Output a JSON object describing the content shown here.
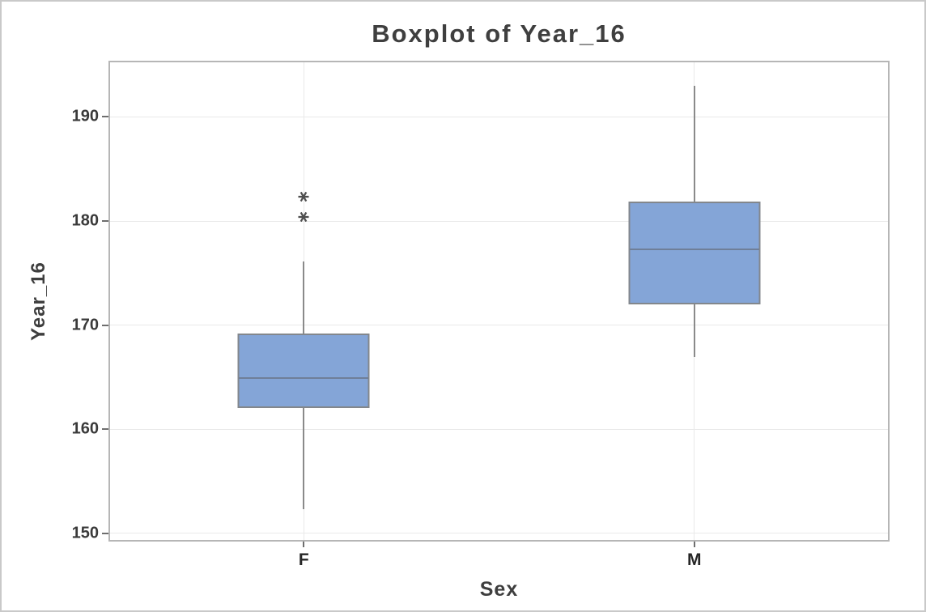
{
  "chart_data": {
    "type": "boxplot",
    "title": "Boxplot of Year_16",
    "xlabel": "Sex",
    "ylabel": "Year_16",
    "categories": [
      "F",
      "M"
    ],
    "yticks": [
      150,
      160,
      170,
      180,
      190
    ],
    "ylim": [
      149.2,
      195.4
    ],
    "grid": "horizontal gridlines at yticks and vertical gridline at each category center",
    "legend": "none",
    "series": [
      {
        "category": "F",
        "whisker_low": 152.3,
        "q1": 162.0,
        "median": 164.9,
        "q3": 169.2,
        "whisker_high": 176.1,
        "outliers": [
          180.4,
          182.3
        ]
      },
      {
        "category": "M",
        "whisker_low": 166.9,
        "q1": 172.0,
        "median": 177.3,
        "q3": 181.9,
        "whisker_high": 193.0,
        "outliers": []
      }
    ],
    "colors": {
      "box_fill": "#84a5d7",
      "box_border": "#83878c",
      "median_line": "#6f7f99",
      "whisker_line": "#8a8a8a",
      "outlier_marker": "#4f4f4f",
      "gridline": "#e9e9e9",
      "frame_border": "#b6b6b6",
      "tick_mark": "#6e6e6e",
      "text": "#3e3e3e",
      "background": "#ffffff",
      "canvas_border": "#c9c9c9"
    },
    "outlier_marker_symbol": "asterisk"
  }
}
